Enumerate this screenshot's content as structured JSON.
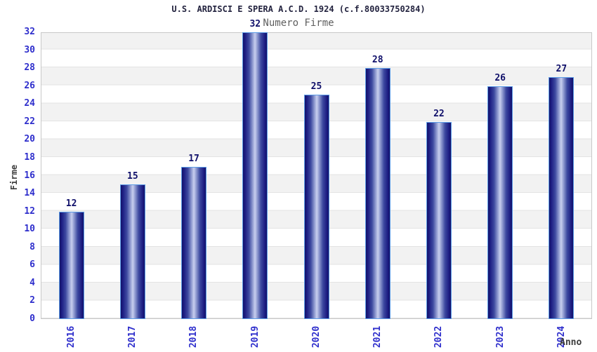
{
  "chart_data": {
    "type": "bar",
    "title": "U.S. ARDISCI E SPERA A.C.D. 1924 (c.f.80033750284)",
    "subtitle": "Numero Firme",
    "categories": [
      "2016",
      "2017",
      "2018",
      "2019",
      "2020",
      "2021",
      "2022",
      "2023",
      "2024"
    ],
    "values": [
      12,
      15,
      17,
      32,
      25,
      28,
      22,
      26,
      27
    ],
    "xlabel": "Anno",
    "ylabel": "Firme",
    "ylim": [
      0,
      32
    ],
    "ytick_step": 2,
    "yticks": [
      0,
      2,
      4,
      6,
      8,
      10,
      12,
      14,
      16,
      18,
      20,
      22,
      24,
      26,
      28,
      30,
      32
    ],
    "grid": "alternating horizontal bands every 2 units, light gray / white",
    "legend_position": "none",
    "colors": {
      "background": "#ffffff",
      "band_gray": "#f2f2f2",
      "band_white": "#ffffff",
      "gridline": "#e3e3e3",
      "plot_border": "#c9c9c9",
      "bar_dark": "#131368",
      "bar_mid": "#3d49a0",
      "bar_highlight": "#c9cfee",
      "bar_border": "#5b9be6",
      "tick_label": "#2e2ecc",
      "value_label": "#10106a",
      "title": "#23233f",
      "subtitle": "#5f5f5f",
      "axis_title": "#3c3c3c"
    }
  }
}
